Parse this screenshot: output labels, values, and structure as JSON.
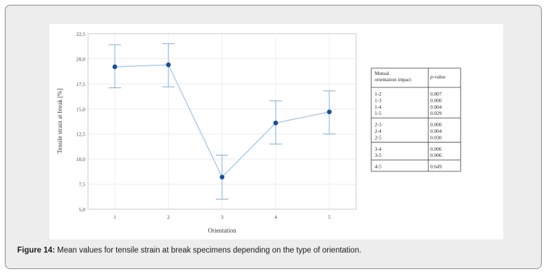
{
  "chart_data": {
    "type": "line",
    "xlabel": "Orientation",
    "ylabel": "Tensile strain at break [%]",
    "x": [
      1,
      2,
      3,
      4,
      5
    ],
    "yticks": [
      "5,0",
      "7,5",
      "10,0",
      "12,5",
      "15,0",
      "17,5",
      "20,0",
      "22,5"
    ],
    "xticks": [
      "1",
      "2",
      "3",
      "4",
      "5"
    ],
    "ylim": [
      5.0,
      22.5
    ],
    "xlim": [
      0.5,
      5.5
    ],
    "grid": true,
    "series": [
      {
        "values": [
          19.2,
          19.4,
          8.2,
          13.6,
          14.7
        ],
        "err_low": [
          17.1,
          17.2,
          6.0,
          11.5,
          12.5
        ],
        "err_high": [
          21.4,
          21.5,
          10.4,
          15.8,
          16.8
        ]
      }
    ],
    "colors": {
      "line": "#a9c7ea",
      "marker": "#13529a",
      "errorbar": "#7fa8d8"
    }
  },
  "table": {
    "header_col1": "Mutual orientation impact",
    "header_col2_italic": "p",
    "header_col2_rest": "-value",
    "groups": [
      {
        "rows": [
          [
            "1-2",
            "0.807"
          ],
          [
            "1-3",
            "0.000"
          ],
          [
            "1-4",
            "0.004"
          ],
          [
            "1-5",
            "0.029"
          ]
        ]
      },
      {
        "rows": [
          [
            "2-3",
            "0.000"
          ],
          [
            "2-4",
            "0.004"
          ],
          [
            "2-5",
            "0.030"
          ]
        ]
      },
      {
        "rows": [
          [
            "3-4",
            "0.006"
          ],
          [
            "3-5",
            "0.006"
          ]
        ]
      },
      {
        "rows": [
          [
            "4-5",
            "0.649"
          ]
        ]
      }
    ]
  },
  "caption": {
    "label": "Figure 14:",
    "text": " Mean values for tensile strain at break specimens depending on the type of orientation."
  }
}
